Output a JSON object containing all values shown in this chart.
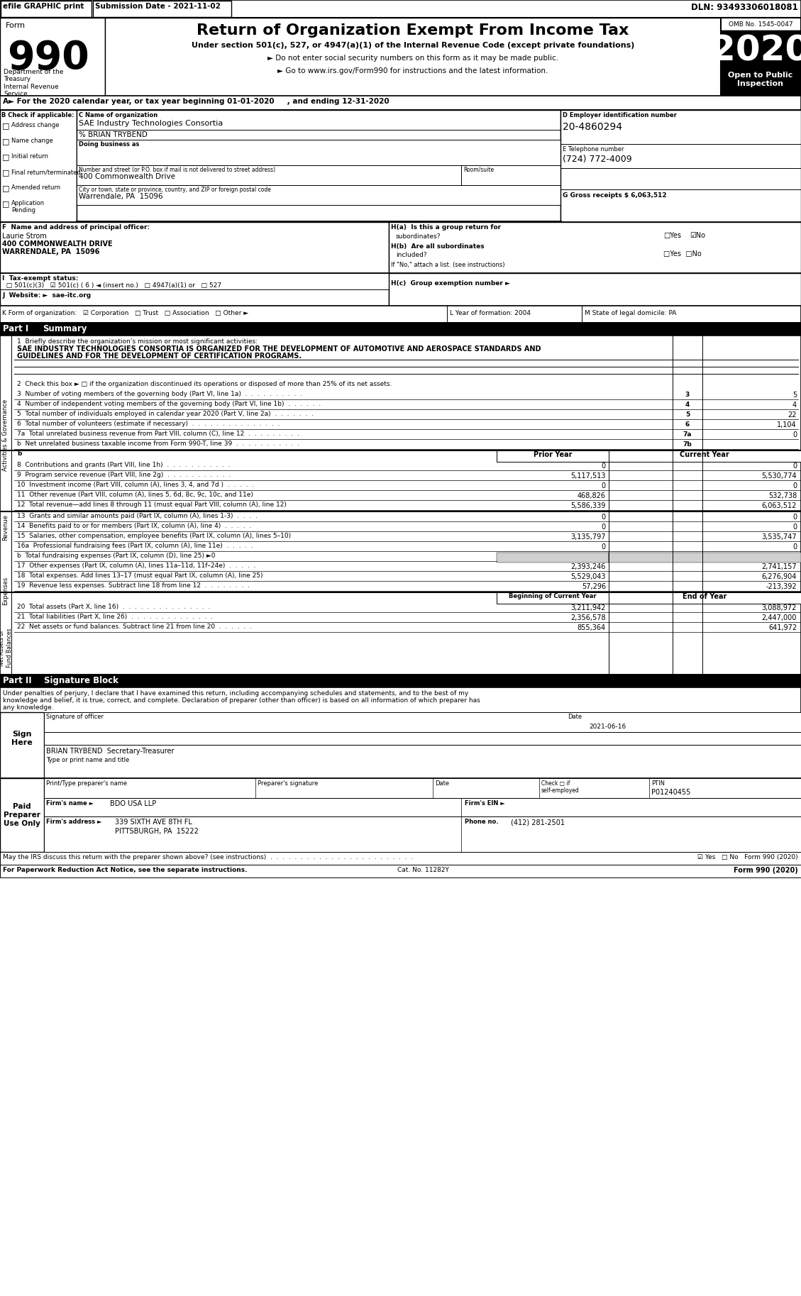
{
  "title": "Return of Organization Exempt From Income Tax",
  "form_number": "990",
  "year": "2020",
  "omb": "OMB No. 1545-0047",
  "efile_text": "efile GRAPHIC print",
  "submission_date": "Submission Date - 2021-11-02",
  "dln": "DLN: 93493306018081",
  "subtitle1": "Under section 501(c), 527, or 4947(a)(1) of the Internal Revenue Code (except private foundations)",
  "subtitle2": "► Do not enter social security numbers on this form as it may be made public.",
  "subtitle3": "► Go to www.irs.gov/Form990 for instructions and the latest information.",
  "open_to_public": "Open to Public\nInspection",
  "dept": "Department of the\nTreasury\nInternal Revenue\nService",
  "org_name": "SAE Industry Technologies Consortia",
  "care_of": "% BRIAN TRYBEND",
  "doing_business": "Doing business as",
  "street": "400 Commonwealth Drive",
  "city": "Warrendale, PA  15096",
  "ein": "20-4860294",
  "phone": "(724) 772-4009",
  "g_label": "G Gross receipts $ 6,063,512",
  "officer_name": "Laurie Strom",
  "officer_addr1": "400 COMMONWEALTH DRIVE",
  "officer_addr2": "WARRENDALE, PA  15096",
  "sig_date": "2021-06-16",
  "sig_name": "BRIAN TRYBEND  Secretary-Treasurer",
  "ptin_val": "P01240455",
  "firm_name": "BDO USA LLP",
  "firm_addr": "339 SIXTH AVE 8TH FL",
  "firm_city": "PITTSBURGH, PA  15222",
  "firm_phone": "(412) 281-2501",
  "bg_color": "#ffffff"
}
